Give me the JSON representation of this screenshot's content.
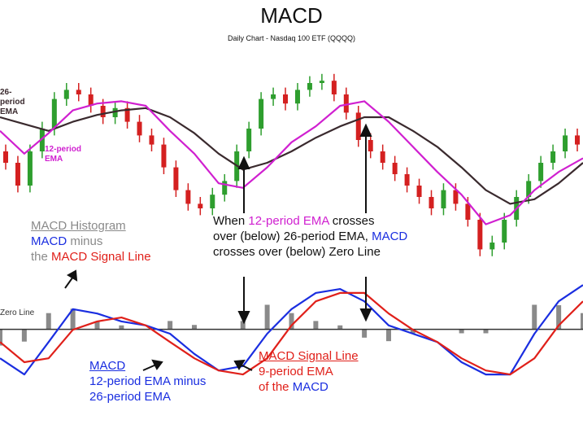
{
  "chart_data": {
    "type": "macd",
    "title": "MACD",
    "subtitle": "Daily Chart - Nasdaq 100 ETF (QQQQ)",
    "price": {
      "ylim": [
        0,
        100
      ],
      "candles": {
        "up_color": "#2e9e2e",
        "down_color": "#d42020",
        "ohlc": [
          [
            55,
            58,
            47,
            50
          ],
          [
            50,
            53,
            37,
            40
          ],
          [
            40,
            58,
            37,
            55
          ],
          [
            55,
            68,
            52,
            65
          ],
          [
            65,
            81,
            62,
            78
          ],
          [
            78,
            85,
            75,
            82
          ],
          [
            82,
            85,
            77,
            80
          ],
          [
            80,
            83,
            72,
            75
          ],
          [
            75,
            78,
            67,
            70
          ],
          [
            70,
            77,
            67,
            74
          ],
          [
            74,
            77,
            65,
            68
          ],
          [
            68,
            71,
            59,
            62
          ],
          [
            62,
            65,
            55,
            58
          ],
          [
            58,
            61,
            45,
            48
          ],
          [
            48,
            51,
            35,
            38
          ],
          [
            38,
            41,
            29,
            32
          ],
          [
            32,
            35,
            27,
            30
          ],
          [
            30,
            39,
            27,
            36
          ],
          [
            36,
            45,
            33,
            42
          ],
          [
            42,
            58,
            39,
            55
          ],
          [
            55,
            68,
            52,
            65
          ],
          [
            65,
            81,
            62,
            78
          ],
          [
            78,
            83,
            75,
            80
          ],
          [
            80,
            83,
            73,
            76
          ],
          [
            76,
            85,
            73,
            82
          ],
          [
            82,
            88,
            79,
            85
          ],
          [
            85,
            89,
            82,
            86
          ],
          [
            86,
            89,
            77,
            80
          ],
          [
            80,
            83,
            69,
            72
          ],
          [
            72,
            75,
            57,
            60
          ],
          [
            60,
            63,
            52,
            55
          ],
          [
            55,
            58,
            47,
            50
          ],
          [
            50,
            53,
            42,
            45
          ],
          [
            45,
            48,
            37,
            40
          ],
          [
            40,
            43,
            32,
            35
          ],
          [
            35,
            38,
            27,
            30
          ],
          [
            30,
            41,
            27,
            38
          ],
          [
            38,
            41,
            29,
            32
          ],
          [
            32,
            35,
            22,
            25
          ],
          [
            25,
            28,
            9,
            12
          ],
          [
            12,
            18,
            9,
            15
          ],
          [
            15,
            28,
            12,
            25
          ],
          [
            25,
            38,
            22,
            35
          ],
          [
            35,
            45,
            32,
            42
          ],
          [
            42,
            53,
            39,
            50
          ],
          [
            50,
            58,
            47,
            55
          ],
          [
            55,
            65,
            52,
            62
          ],
          [
            62,
            65,
            55,
            58
          ]
        ]
      },
      "series": [
        {
          "name": "26-period EMA",
          "color": "#3a2a2e",
          "values": [
            70,
            67,
            64,
            68,
            71,
            73,
            74,
            70,
            63,
            54,
            47,
            50,
            55,
            61,
            66,
            70,
            70,
            64,
            57,
            48,
            38,
            32,
            34,
            41,
            50
          ]
        },
        {
          "name": "12-period EMA",
          "color": "#d020d0",
          "values": [
            64,
            54,
            63,
            73,
            76,
            77,
            75,
            64,
            54,
            41,
            39,
            48,
            59,
            66,
            75,
            77,
            68,
            57,
            46,
            36,
            23,
            27,
            38,
            46,
            52
          ]
        }
      ]
    },
    "macd_panel": {
      "ylim": [
        -14,
        12
      ],
      "zero_label": "Zero Line",
      "histogram": {
        "name": "MACD Histogram",
        "color": "#8a8a8a",
        "values": [
          -3.7,
          -2.8,
          3.7,
          4.7,
          1.8,
          0.9,
          0,
          1.9,
          1.0,
          0,
          1.9,
          5.6,
          3.7,
          1.9,
          0.9,
          -1.9,
          -2.7,
          -0.9,
          0,
          -0.9,
          -0.9,
          0,
          5.6,
          5.5,
          3.7
        ]
      },
      "series": [
        {
          "name": "MACD",
          "color": "#1a2ee0",
          "values": [
            -6.6,
            -10.3,
            -2.9,
            4.6,
            3.6,
            1.8,
            0.9,
            -1.0,
            -5.6,
            -9.4,
            -8.4,
            -1.0,
            4.6,
            8.3,
            9.2,
            6.4,
            0.9,
            -1.0,
            -2.9,
            -7.5,
            -10.3,
            -10.3,
            -1.0,
            6.4,
            10.1
          ]
        },
        {
          "name": "MACD Signal Line",
          "color": "#e0201a",
          "values": [
            -2.9,
            -7.5,
            -6.6,
            -0.1,
            1.8,
            2.7,
            0.9,
            -2.9,
            -6.6,
            -9.4,
            -10.3,
            -6.6,
            0.9,
            6.4,
            8.3,
            8.3,
            3.6,
            -0.1,
            -2.9,
            -6.6,
            -9.4,
            -10.3,
            -6.6,
            0.9,
            6.4
          ]
        }
      ]
    },
    "annotations": [
      {
        "lines": [
          [
            {
              "text": "MACD Histogram",
              "color": "#8a8a8a",
              "underline": true
            }
          ],
          [
            {
              "text": "MACD",
              "color": "#1a2ee0"
            },
            {
              "text": " minus",
              "color": "#8a8a8a"
            }
          ],
          [
            {
              "text": "the ",
              "color": "#8a8a8a"
            },
            {
              "text": "MACD Signal Line",
              "color": "#e0201a"
            }
          ]
        ]
      },
      {
        "lines": [
          [
            {
              "text": "When ",
              "color": "#111111"
            },
            {
              "text": "12-period EMA",
              "color": "#d020d0"
            },
            {
              "text": " crosses",
              "color": "#111111"
            }
          ],
          [
            {
              "text": "over (below) 26-period EMA, ",
              "color": "#111111"
            },
            {
              "text": "MACD",
              "color": "#1a2ee0"
            }
          ],
          [
            {
              "text": "crosses over (below) Zero Line",
              "color": "#111111"
            }
          ]
        ]
      },
      {
        "lines": [
          [
            {
              "text": "MACD",
              "color": "#1a2ee0",
              "underline": true
            }
          ],
          [
            {
              "text": "12-period EMA minus",
              "color": "#1a2ee0"
            }
          ],
          [
            {
              "text": "26-period EMA",
              "color": "#1a2ee0"
            }
          ]
        ]
      },
      {
        "lines": [
          [
            {
              "text": "MACD Signal Line",
              "color": "#e0201a",
              "underline": true
            }
          ],
          [
            {
              "text": "9-period EMA",
              "color": "#e0201a"
            }
          ],
          [
            {
              "text": "of the ",
              "color": "#e0201a"
            },
            {
              "text": "MACD",
              "color": "#1a2ee0"
            }
          ]
        ]
      }
    ]
  }
}
